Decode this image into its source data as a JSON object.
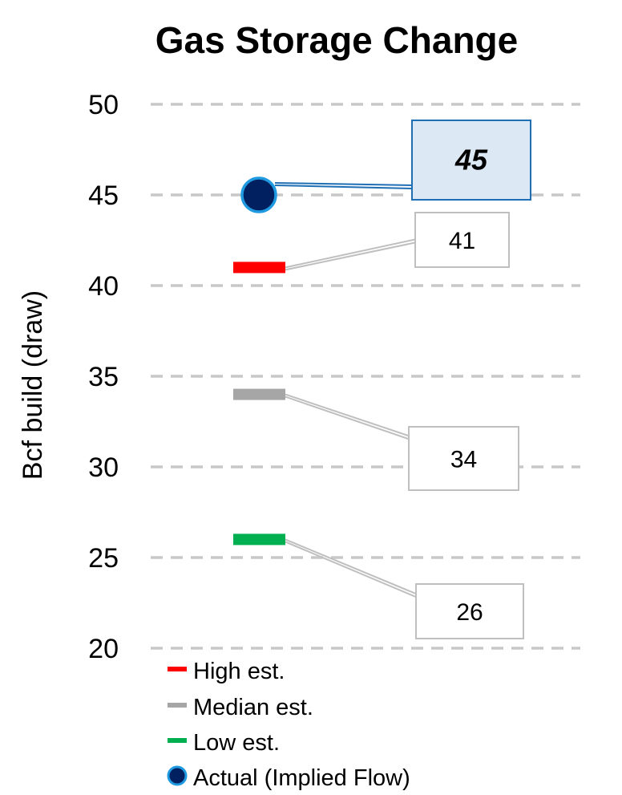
{
  "chart_data": {
    "type": "scatter",
    "title": "Gas Storage Change",
    "ylabel": "Bcf build (draw)",
    "ylim": [
      20,
      50
    ],
    "yticks": [
      "50",
      "45",
      "40",
      "35",
      "30",
      "25",
      "20"
    ],
    "grid": true,
    "legend_position": "bottom-left",
    "series": [
      {
        "name": "High est.",
        "value": 41,
        "label": "41",
        "marker": "dash",
        "color": "#ff0000"
      },
      {
        "name": "Median est.",
        "value": 34,
        "label": "34",
        "marker": "dash",
        "color": "#a6a6a6"
      },
      {
        "name": "Low est.",
        "value": 26,
        "label": "26",
        "marker": "dash",
        "color": "#00b050"
      },
      {
        "name": "Actual (Implied Flow)",
        "value": 45,
        "label": "45",
        "marker": "circle",
        "color": "#002060",
        "edge_color": "#1f9ae0"
      }
    ],
    "callout_colors": {
      "actual_fill": "#dde8f5",
      "actual_border": "#1f6fb4",
      "estimate_border": "#bfbfbf"
    }
  }
}
